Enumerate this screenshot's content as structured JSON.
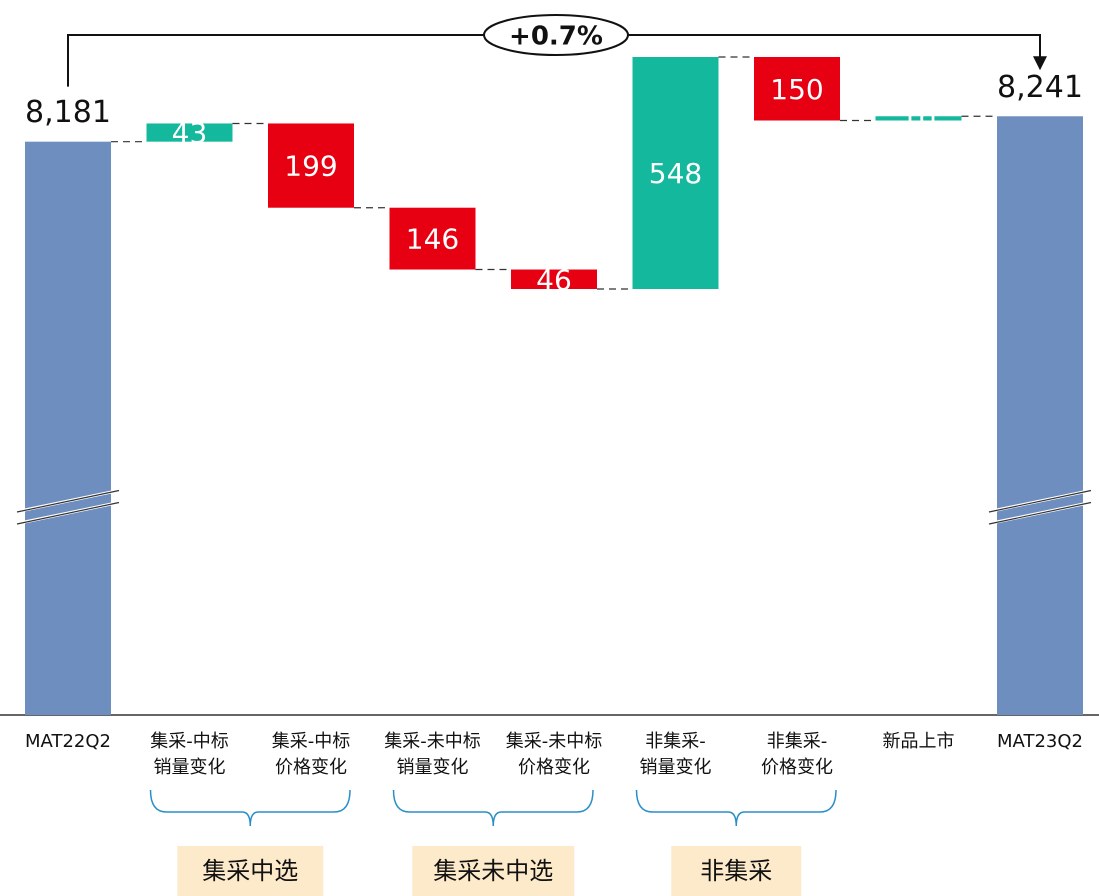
{
  "chart_data": {
    "type": "waterfall",
    "annotation": "+0.7%",
    "categories": [
      [
        "MAT22Q2"
      ],
      [
        "集采-中标",
        "销量变化"
      ],
      [
        "集采-中标",
        "价格变化"
      ],
      [
        "集采-未中标",
        "销量变化"
      ],
      [
        "集采-未中标",
        "价格变化"
      ],
      [
        "非集采-",
        "销量变化"
      ],
      [
        "非集采-",
        "价格变化"
      ],
      [
        "新品上市"
      ],
      [
        "MAT23Q2"
      ]
    ],
    "values": [
      8181,
      43,
      -199,
      -146,
      -46,
      548,
      -150,
      10,
      8241
    ],
    "value_labels": [
      "8,181",
      "43",
      "199",
      "146",
      "46",
      "548",
      "150",
      "10",
      "8,241"
    ],
    "colors": {
      "total": "#6e8ebf",
      "increase": "#14b89c",
      "decrease": "#e60012"
    },
    "groups": [
      {
        "label": "集采中选",
        "from": 1,
        "to": 2
      },
      {
        "label": "集采未中选",
        "from": 3,
        "to": 4
      },
      {
        "label": "非集采",
        "from": 5,
        "to": 6
      }
    ]
  }
}
